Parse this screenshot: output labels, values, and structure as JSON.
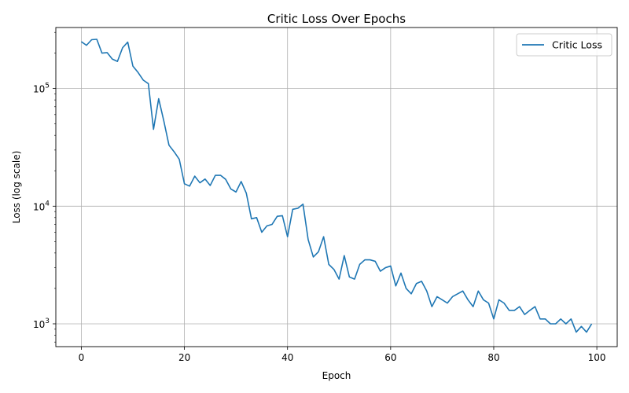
{
  "chart_data": {
    "type": "line",
    "title": "Critic Loss Over Epochs",
    "xlabel": "Epoch",
    "ylabel": "Loss (log scale)",
    "yscale": "log",
    "xlim": [
      -4.95,
      103.95
    ],
    "ylim": [
      640,
      330000
    ],
    "grid": true,
    "legend_position": "top-right",
    "x_ticks": [
      0,
      20,
      40,
      60,
      80,
      100
    ],
    "y_ticks": [
      {
        "value": 1000,
        "base": "10",
        "exp": "3"
      },
      {
        "value": 10000,
        "base": "10",
        "exp": "4"
      },
      {
        "value": 100000,
        "base": "10",
        "exp": "5"
      }
    ],
    "series": [
      {
        "name": "Critic Loss",
        "color": "#1f77b4",
        "x": [
          0,
          1,
          2,
          3,
          4,
          5,
          6,
          7,
          8,
          9,
          10,
          11,
          12,
          13,
          14,
          15,
          16,
          17,
          18,
          19,
          20,
          21,
          22,
          23,
          24,
          25,
          26,
          27,
          28,
          29,
          30,
          31,
          32,
          33,
          34,
          35,
          36,
          37,
          38,
          39,
          40,
          41,
          42,
          43,
          44,
          45,
          46,
          47,
          48,
          49,
          50,
          51,
          52,
          53,
          54,
          55,
          56,
          57,
          58,
          59,
          60,
          61,
          62,
          63,
          64,
          65,
          66,
          67,
          68,
          69,
          70,
          71,
          72,
          73,
          74,
          75,
          76,
          77,
          78,
          79,
          80,
          81,
          82,
          83,
          84,
          85,
          86,
          87,
          88,
          89,
          90,
          91,
          92,
          93,
          94,
          95,
          96,
          97,
          98,
          99
        ],
        "values": [
          250000,
          233000,
          260000,
          262000,
          200000,
          202000,
          178000,
          170000,
          222000,
          248000,
          155000,
          137000,
          118000,
          110000,
          45000,
          82000,
          53000,
          33000,
          29000,
          25000,
          15500,
          14800,
          18000,
          15800,
          17000,
          15000,
          18300,
          18300,
          16900,
          14000,
          13200,
          16200,
          12900,
          7800,
          8000,
          6000,
          6800,
          7000,
          8200,
          8300,
          5500,
          9400,
          9600,
          10400,
          5200,
          3700,
          4100,
          5500,
          3200,
          2900,
          2400,
          3800,
          2500,
          2400,
          3200,
          3500,
          3500,
          3400,
          2800,
          3000,
          3100,
          2100,
          2700,
          2000,
          1800,
          2200,
          2300,
          1900,
          1400,
          1700,
          1600,
          1500,
          1700,
          1800,
          1900,
          1600,
          1400,
          1900,
          1600,
          1500,
          1100,
          1600,
          1500,
          1300,
          1300,
          1400,
          1200,
          1300,
          1400,
          1100,
          1100,
          1000,
          1000,
          1100,
          1000,
          1100,
          850,
          950,
          850,
          1000
        ]
      }
    ]
  }
}
